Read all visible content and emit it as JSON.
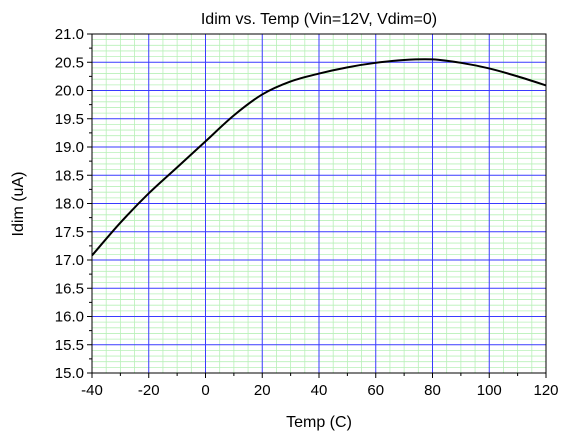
{
  "chart_data": {
    "type": "line",
    "title": "Idim vs. Temp (Vin=12V, Vdim=0)",
    "xlabel": "Temp (C)",
    "ylabel": "Idim (uA)",
    "xlim": [
      -40,
      120
    ],
    "ylim": [
      15.0,
      21.0
    ],
    "x_ticks": [
      "-40",
      "-20",
      "0",
      "20",
      "40",
      "60",
      "80",
      "100",
      "120"
    ],
    "y_ticks": [
      "15.0",
      "15.5",
      "16.0",
      "16.5",
      "17.0",
      "17.5",
      "18.0",
      "18.5",
      "19.0",
      "19.5",
      "20.0",
      "20.5",
      "21.0"
    ],
    "grid": true,
    "legend": "none",
    "colors": {
      "line": "#000000",
      "major_grid": "#3a3aff",
      "minor_grid": "#b8f0b8",
      "axes": "#000000"
    },
    "series": [
      {
        "x": [
          -40,
          -30,
          -20,
          -10,
          0,
          10,
          20,
          30,
          40,
          50,
          60,
          70,
          80,
          90,
          100,
          110,
          120
        ],
        "values": [
          17.08,
          17.66,
          18.18,
          18.64,
          19.1,
          19.56,
          19.93,
          20.16,
          20.3,
          20.41,
          20.49,
          20.54,
          20.55,
          20.49,
          20.39,
          20.25,
          20.09
        ]
      }
    ]
  }
}
